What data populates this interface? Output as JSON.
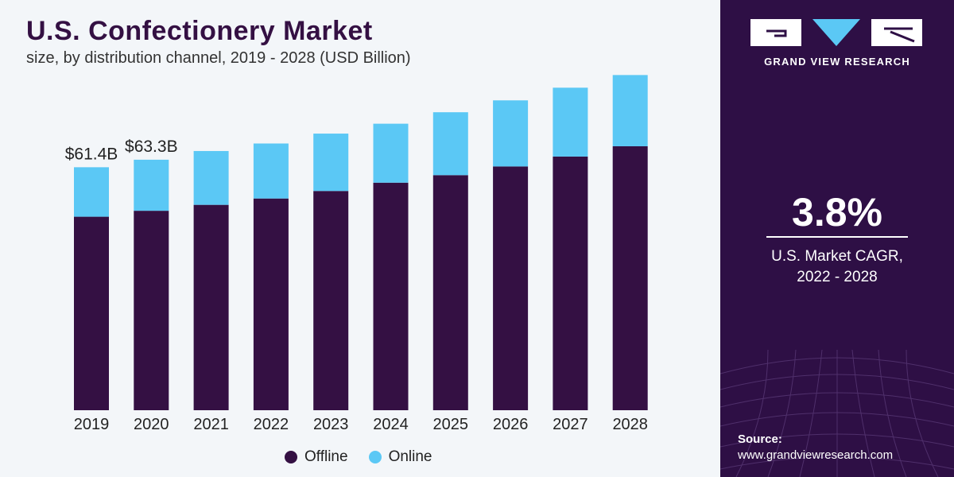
{
  "header": {
    "title": "U.S. Confectionery Market",
    "subtitle": "size, by distribution channel, 2019 - 2028 (USD Billion)"
  },
  "chart_data": {
    "type": "bar",
    "stacked": true,
    "categories": [
      "2019",
      "2020",
      "2021",
      "2022",
      "2023",
      "2024",
      "2025",
      "2026",
      "2027",
      "2028"
    ],
    "series": [
      {
        "name": "Offline",
        "color": "#341043",
        "values": [
          48.9,
          50.4,
          51.9,
          53.5,
          55.4,
          57.5,
          59.4,
          61.6,
          64.1,
          66.7
        ]
      },
      {
        "name": "Online",
        "color": "#5bc8f5",
        "values": [
          12.5,
          12.9,
          13.6,
          13.9,
          14.5,
          14.9,
          15.9,
          16.7,
          17.4,
          18.0
        ]
      }
    ],
    "data_labels": [
      {
        "category": "2019",
        "text": "$61.4B"
      },
      {
        "category": "2020",
        "text": "$63.3B"
      }
    ],
    "ylim": [
      0,
      90
    ],
    "xlabel": "",
    "ylabel": "",
    "grid": false,
    "legend_position": "bottom"
  },
  "legend": {
    "items": [
      {
        "label": "Offline",
        "color": "#341043"
      },
      {
        "label": "Online",
        "color": "#5bc8f5"
      }
    ]
  },
  "side_panel": {
    "brand": "GRAND VIEW RESEARCH",
    "cagr_value": "3.8%",
    "cagr_label_line1": "U.S. Market CAGR,",
    "cagr_label_line2": "2022 - 2028",
    "source_label": "Source:",
    "source_url": "www.grandviewresearch.com"
  },
  "colors": {
    "panel_background": "#2e0f45",
    "chart_background": "#f3f6f9",
    "offline": "#341043",
    "online": "#5bc8f5"
  }
}
